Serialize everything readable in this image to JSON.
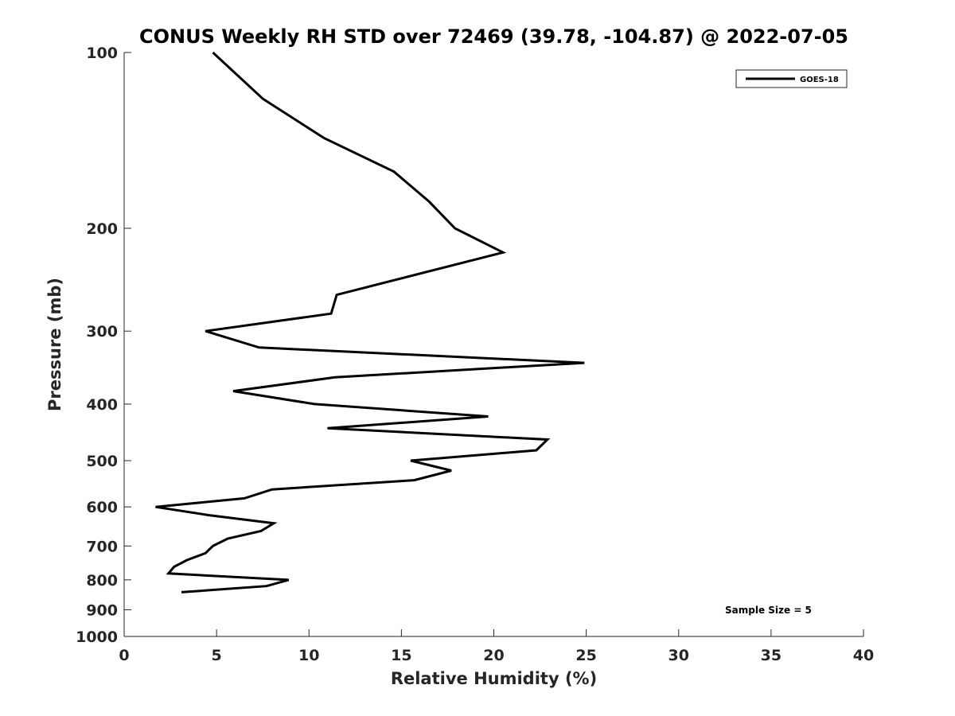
{
  "chart_data": {
    "type": "line",
    "title": "CONUS Weekly RH STD over 72469 (39.78, -104.87) @ 2022-07-05",
    "xlabel": "Relative Humidity (%)",
    "ylabel": "Pressure (mb)",
    "xlim": [
      0,
      40
    ],
    "ylim": [
      100,
      1000
    ],
    "y_scale": "log",
    "y_reversed": true,
    "x_ticks": [
      0,
      5,
      10,
      15,
      20,
      25,
      30,
      35,
      40
    ],
    "x_tick_labels": [
      "0",
      "5",
      "10",
      "15",
      "20",
      "25",
      "30",
      "35",
      "40"
    ],
    "y_ticks": [
      100,
      200,
      300,
      400,
      500,
      600,
      700,
      800,
      900,
      1000
    ],
    "y_tick_labels": [
      "100",
      "200",
      "300",
      "400",
      "500",
      "600",
      "700",
      "800",
      "900",
      "1000"
    ],
    "grid": false,
    "legend_position": "top-right",
    "series": [
      {
        "name": "GOES-18",
        "color": "#000000",
        "x": [
          4.8,
          7.5,
          10.8,
          14.6,
          16.5,
          17.9,
          20.5,
          11.5,
          11.2,
          4.4,
          7.3,
          24.9,
          11.4,
          5.9,
          10.3,
          19.7,
          11.0,
          22.9,
          22.3,
          15.5,
          17.7,
          15.7,
          8.0,
          6.5,
          1.7,
          4.6,
          8.1,
          7.4,
          5.6,
          4.8,
          4.4,
          3.4,
          2.7,
          2.4,
          8.9,
          7.7,
          3.1
        ],
        "y": [
          100,
          120,
          140,
          160,
          180,
          200,
          220,
          260,
          280,
          300,
          320,
          340,
          360,
          380,
          400,
          420,
          440,
          460,
          480,
          500,
          520,
          540,
          560,
          580,
          600,
          620,
          640,
          660,
          680,
          700,
          720,
          740,
          760,
          780,
          800,
          820,
          840
        ]
      }
    ],
    "annotations": [
      {
        "text": "Sample Size = 5",
        "position": "bottom-right"
      }
    ]
  }
}
